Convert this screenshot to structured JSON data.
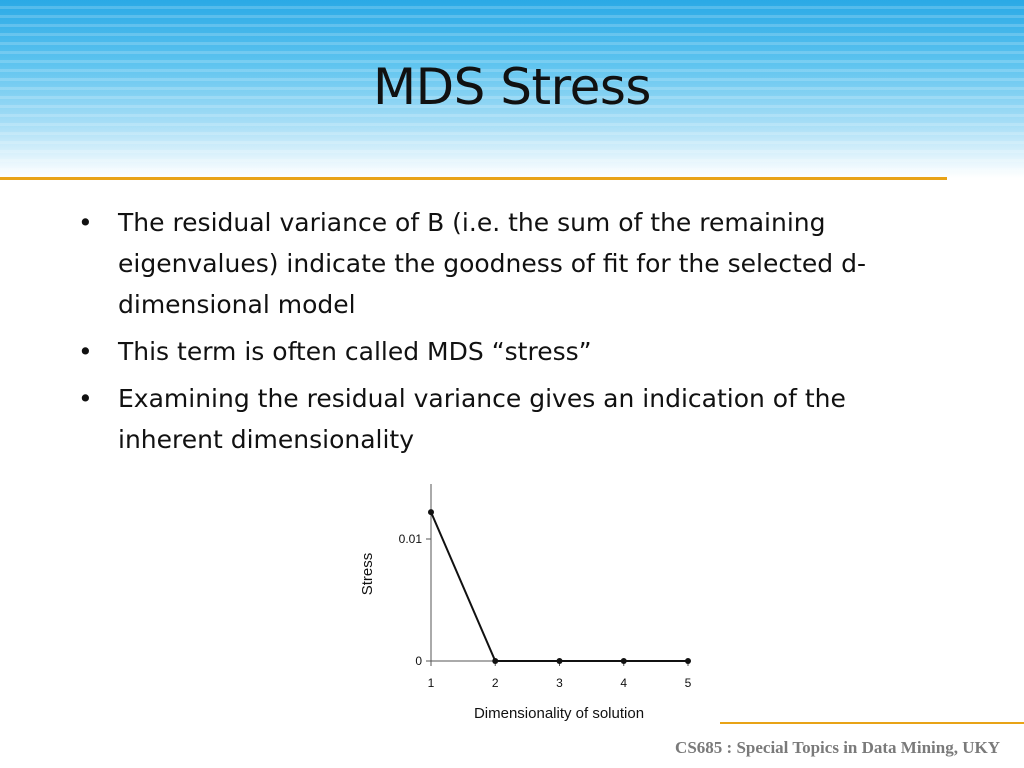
{
  "slide": {
    "title": "MDS Stress",
    "bullets": [
      "The residual variance of B (i.e. the sum of the remaining eigenvalues) indicate the goodness of fit for the selected d-dimensional model",
      "This term is often called MDS “stress”",
      "Examining the residual variance gives an indication of the inherent dimensionality"
    ],
    "footer": "CS685 : Special Topics in Data Mining, UKY",
    "colors": {
      "accent_rule": "#e8a317",
      "header_blue": "#2aa9e6"
    }
  },
  "chart_data": {
    "type": "line",
    "x": [
      1,
      2,
      3,
      4,
      5
    ],
    "series": [
      {
        "values": [
          0.0122,
          0,
          0,
          0,
          0
        ]
      }
    ],
    "xlabel": "Dimensionality of solution",
    "ylabel": "Stress",
    "xticks": [
      "1",
      "2",
      "3",
      "4",
      "5"
    ],
    "yticks": [
      {
        "value": 0,
        "label": "0"
      },
      {
        "value": 0.01,
        "label": "0.01"
      }
    ],
    "xlim": [
      1,
      5
    ],
    "ylim": [
      0,
      0.015
    ],
    "grid": false
  }
}
